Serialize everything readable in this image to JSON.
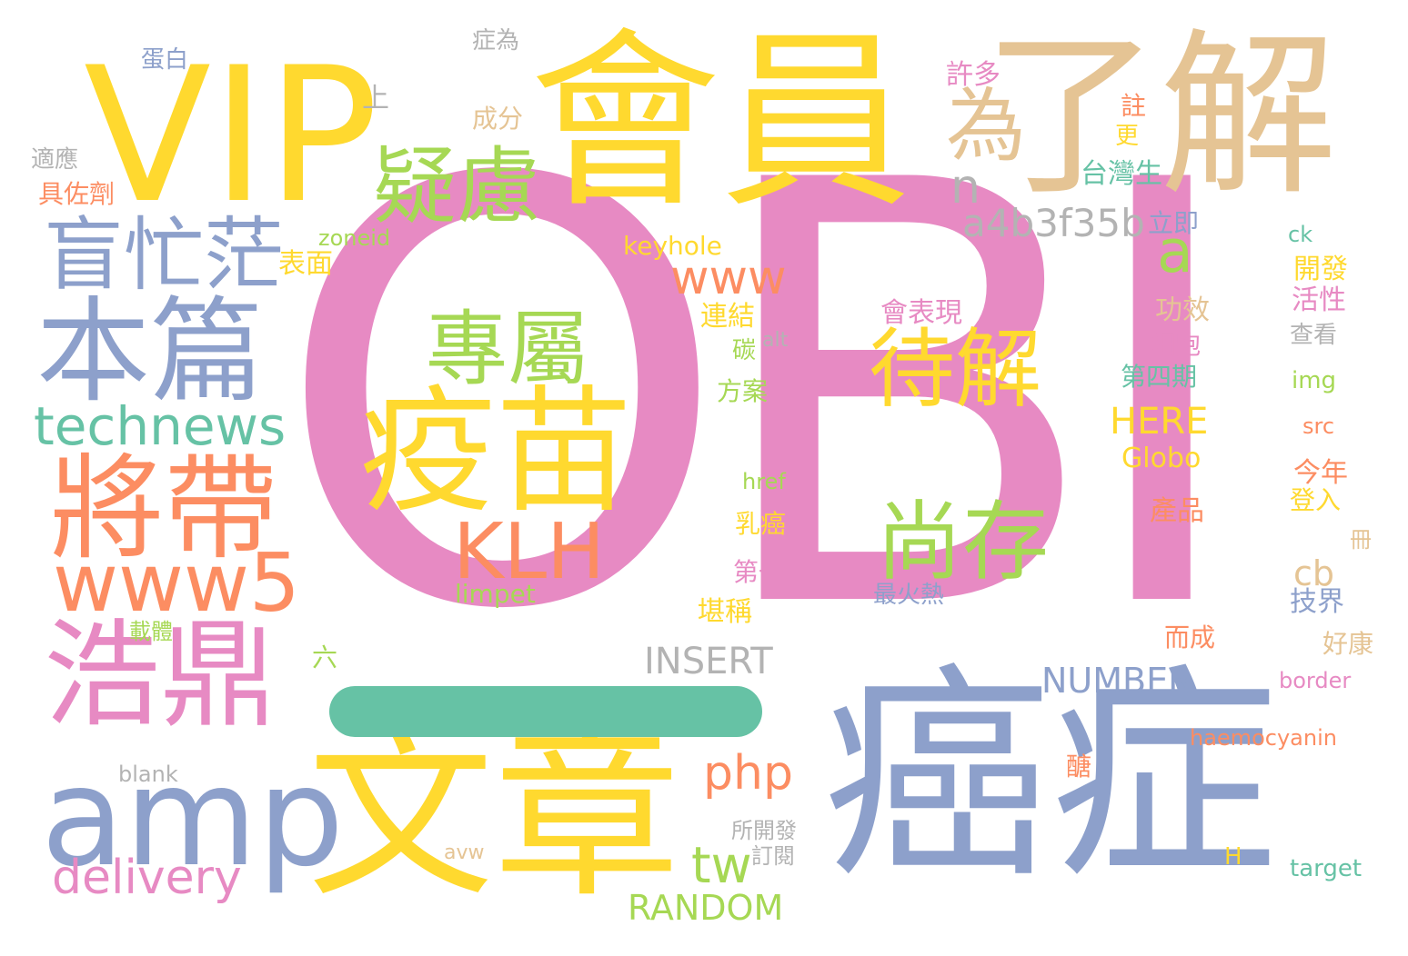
{
  "words": [
    {
      "text": "OBI",
      "color": "#e78ac3"
    },
    {
      "text": "會員",
      "color": "#ffd92f"
    },
    {
      "text": "了解",
      "color": "#e5c494"
    },
    {
      "text": "VIP",
      "color": "#ffd92f"
    },
    {
      "text": "癌症",
      "color": "#8da0cb"
    },
    {
      "text": "文章",
      "color": "#ffd92f"
    },
    {
      "text": "疫苗",
      "color": "#ffd92f"
    },
    {
      "text": "amp",
      "color": "#8da0cb"
    },
    {
      "text": "浩鼎",
      "color": "#e78ac3"
    },
    {
      "text": "本篇",
      "color": "#8da0cb"
    },
    {
      "text": "將帶",
      "color": "#fc8d62"
    },
    {
      "text": "疑慮",
      "color": "#a6d854"
    },
    {
      "text": "盲忙茫",
      "color": "#8da0cb"
    },
    {
      "text": "待解",
      "color": "#ffd92f"
    },
    {
      "text": "尚存",
      "color": "#a6d854"
    },
    {
      "text": "專屬",
      "color": "#a6d854"
    },
    {
      "text": "為",
      "color": "#e5c494"
    },
    {
      "text": "www5",
      "color": "#fc8d62"
    },
    {
      "text": "KLH",
      "color": "#fc8d62"
    },
    {
      "text": "technews",
      "color": "#66c2a5"
    },
    {
      "text": "delivery",
      "color": "#e78ac3"
    },
    {
      "text": "www",
      "color": "#fc8d62"
    },
    {
      "text": "php",
      "color": "#fc8d62"
    },
    {
      "text": "a4b3f35b",
      "color": "#b3b3b3"
    },
    {
      "text": "a",
      "color": "#a6d854"
    },
    {
      "text": "n",
      "color": "#b3b3b3"
    },
    {
      "text": "tw",
      "color": "#a6d854"
    },
    {
      "text": "NUMBER",
      "color": "#8da0cb"
    },
    {
      "text": "INSERT",
      "color": "#b3b3b3"
    },
    {
      "text": "RANDOM",
      "color": "#a6d854"
    },
    {
      "text": "HERE",
      "color": "#ffd92f"
    },
    {
      "text": "cb",
      "color": "#e5c494"
    },
    {
      "text": "Globo",
      "color": "#ffd92f"
    },
    {
      "text": "會表現",
      "color": "#e78ac3"
    },
    {
      "text": "keyhole",
      "color": "#ffd92f"
    },
    {
      "text": "zoneid",
      "color": "#a6d854"
    },
    {
      "text": "limpet",
      "color": "#a6d854"
    },
    {
      "text": "haemocyanin",
      "color": "#fc8d62"
    },
    {
      "text": "症為",
      "color": "#b3b3b3"
    },
    {
      "text": "蛋白",
      "color": "#8da0cb"
    },
    {
      "text": "上",
      "color": "#b3b3b3"
    },
    {
      "text": "成分",
      "color": "#e5c494"
    },
    {
      "text": "適應",
      "color": "#b3b3b3"
    },
    {
      "text": "具佐劑",
      "color": "#fc8d62"
    },
    {
      "text": "表面",
      "color": "#ffd92f"
    },
    {
      "text": "許多",
      "color": "#e78ac3"
    },
    {
      "text": "註",
      "color": "#fc8d62"
    },
    {
      "text": "更",
      "color": "#ffd92f"
    },
    {
      "text": "台灣生",
      "color": "#66c2a5"
    },
    {
      "text": "立即",
      "color": "#8da0cb"
    },
    {
      "text": "ck",
      "color": "#66c2a5"
    },
    {
      "text": "開發",
      "color": "#ffd92f"
    },
    {
      "text": "活性",
      "color": "#e78ac3"
    },
    {
      "text": "功效",
      "color": "#e5c494"
    },
    {
      "text": "查看",
      "color": "#b3b3b3"
    },
    {
      "text": "細胞",
      "color": "#e78ac3"
    },
    {
      "text": "第四期",
      "color": "#66c2a5"
    },
    {
      "text": "img",
      "color": "#a6d854"
    },
    {
      "text": "src",
      "color": "#fc8d62"
    },
    {
      "text": "連結",
      "color": "#ffd92f"
    },
    {
      "text": "alt",
      "color": "#b3b3b3"
    },
    {
      "text": "碳",
      "color": "#a6d854"
    },
    {
      "text": "方案",
      "color": "#a6d854"
    },
    {
      "text": "href",
      "color": "#a6d854"
    },
    {
      "text": "乳癌",
      "color": "#ffd92f"
    },
    {
      "text": "第一",
      "color": "#e78ac3"
    },
    {
      "text": "堪稱",
      "color": "#ffd92f"
    },
    {
      "text": "最火熱",
      "color": "#8da0cb"
    },
    {
      "text": "今年",
      "color": "#fc8d62"
    },
    {
      "text": "登入",
      "color": "#ffd92f"
    },
    {
      "text": "產品",
      "color": "#fc8d62"
    },
    {
      "text": "冊",
      "color": "#e5c494"
    },
    {
      "text": "技界",
      "color": "#8da0cb"
    },
    {
      "text": "而成",
      "color": "#fc8d62"
    },
    {
      "text": "好康",
      "color": "#e5c494"
    },
    {
      "text": "border",
      "color": "#e78ac3"
    },
    {
      "text": "載體",
      "color": "#a6d854"
    },
    {
      "text": "六",
      "color": "#a6d854"
    },
    {
      "text": "blank",
      "color": "#b3b3b3"
    },
    {
      "text": "醣",
      "color": "#fc8d62"
    },
    {
      "text": "所開發",
      "color": "#b3b3b3"
    },
    {
      "text": "訂閱",
      "color": "#b3b3b3"
    },
    {
      "text": "avw",
      "color": "#e5c494"
    },
    {
      "text": "H",
      "color": "#ffd92f"
    },
    {
      "text": "target",
      "color": "#66c2a5"
    },
    {
      "text": "一",
      "color": "#66c2a5"
    }
  ]
}
